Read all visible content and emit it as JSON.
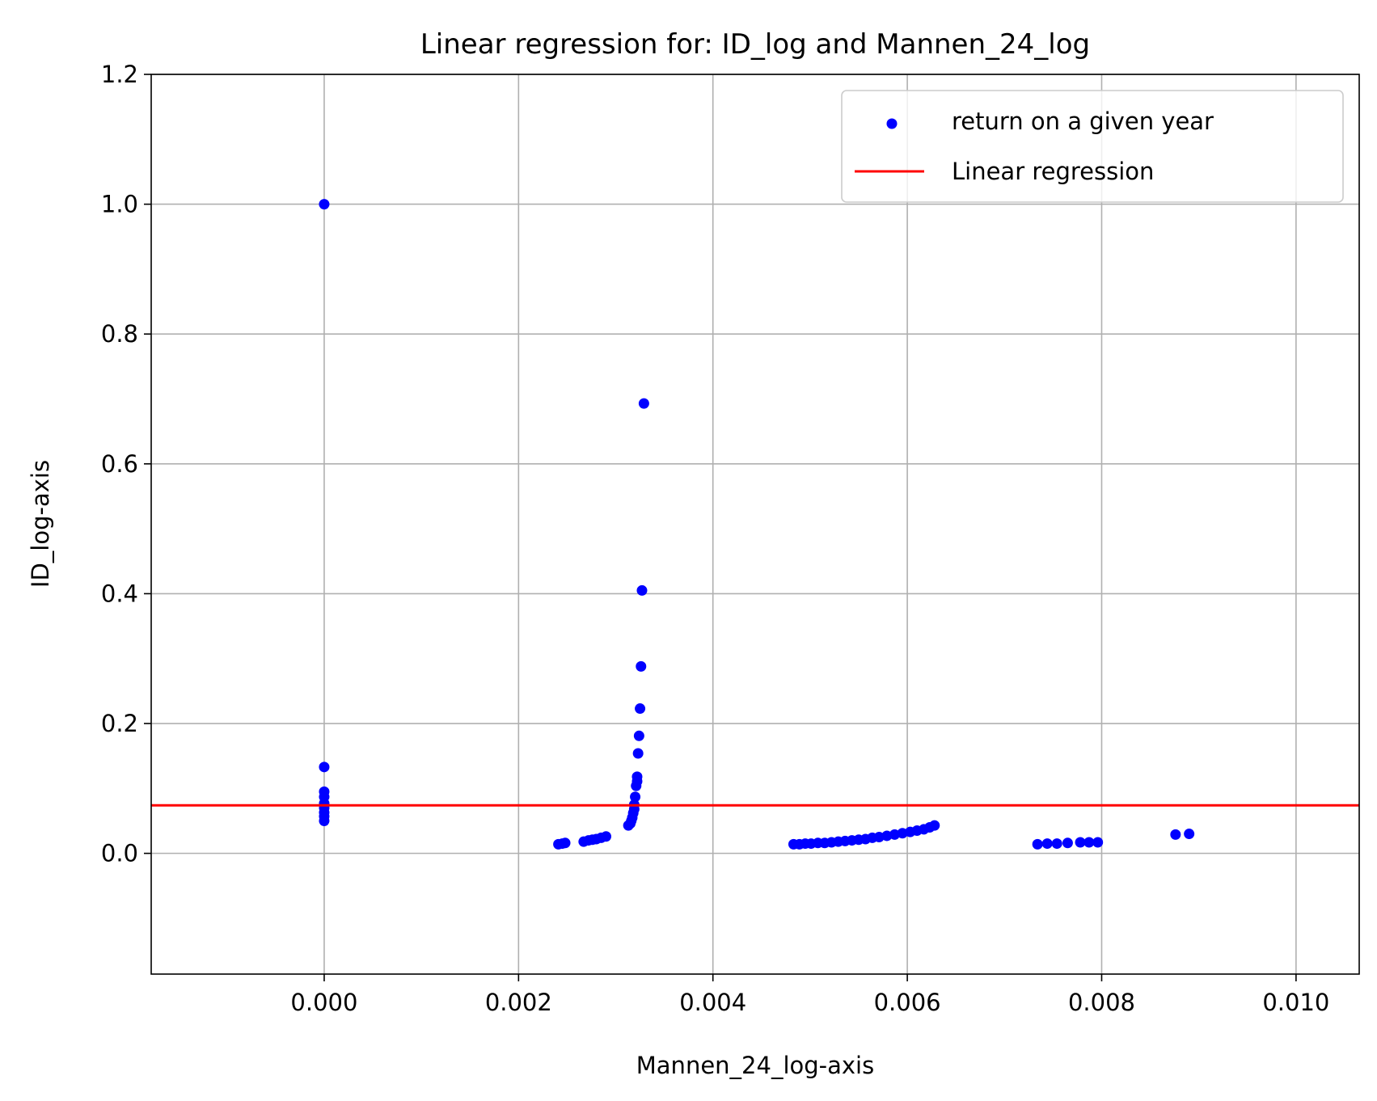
{
  "chart_data": {
    "type": "scatter",
    "title": "Linear regression for: ID_log and Mannen_24_log",
    "xlabel": "Mannen_24_log-axis",
    "ylabel": "ID_log-axis",
    "xlim": [
      -0.00178,
      0.01065
    ],
    "ylim": [
      -0.186,
      1.2
    ],
    "xticks": [
      0.0,
      0.002,
      0.004,
      0.006,
      0.008,
      0.01
    ],
    "xtick_labels": [
      "0.000",
      "0.002",
      "0.004",
      "0.006",
      "0.008",
      "0.010"
    ],
    "yticks": [
      0.0,
      0.2,
      0.4,
      0.6,
      0.8,
      1.0,
      1.2
    ],
    "ytick_labels": [
      "0.0",
      "0.2",
      "0.4",
      "0.6",
      "0.8",
      "1.0",
      "1.2"
    ],
    "grid": true,
    "legend_position": "top-right",
    "series": [
      {
        "name": "return on a given year",
        "kind": "scatter",
        "color": "#0000ff",
        "points": [
          [
            0.0,
            1.0
          ],
          [
            0.0,
            0.133
          ],
          [
            0.0,
            0.095
          ],
          [
            0.0,
            0.087
          ],
          [
            0.0,
            0.077
          ],
          [
            0.0,
            0.07
          ],
          [
            0.0,
            0.063
          ],
          [
            0.0,
            0.057
          ],
          [
            0.0,
            0.05
          ],
          [
            0.00241,
            0.014
          ],
          [
            0.00245,
            0.015
          ],
          [
            0.00248,
            0.016
          ],
          [
            0.00267,
            0.018
          ],
          [
            0.00272,
            0.02
          ],
          [
            0.00276,
            0.021
          ],
          [
            0.0028,
            0.022
          ],
          [
            0.00285,
            0.024
          ],
          [
            0.0029,
            0.026
          ],
          [
            0.00313,
            0.043
          ],
          [
            0.00315,
            0.046
          ],
          [
            0.00316,
            0.05
          ],
          [
            0.00317,
            0.055
          ],
          [
            0.00318,
            0.062
          ],
          [
            0.00319,
            0.068
          ],
          [
            0.00319,
            0.075
          ],
          [
            0.0032,
            0.087
          ],
          [
            0.00321,
            0.104
          ],
          [
            0.00322,
            0.111
          ],
          [
            0.00322,
            0.118
          ],
          [
            0.00323,
            0.154
          ],
          [
            0.00324,
            0.181
          ],
          [
            0.00325,
            0.223
          ],
          [
            0.00326,
            0.288
          ],
          [
            0.00327,
            0.405
          ],
          [
            0.00329,
            0.693
          ],
          [
            0.00483,
            0.014
          ],
          [
            0.00489,
            0.014
          ],
          [
            0.00495,
            0.015
          ],
          [
            0.00501,
            0.015
          ],
          [
            0.00508,
            0.016
          ],
          [
            0.00515,
            0.016
          ],
          [
            0.00522,
            0.017
          ],
          [
            0.00529,
            0.018
          ],
          [
            0.00536,
            0.019
          ],
          [
            0.00543,
            0.02
          ],
          [
            0.0055,
            0.021
          ],
          [
            0.00557,
            0.022
          ],
          [
            0.00564,
            0.024
          ],
          [
            0.00571,
            0.025
          ],
          [
            0.00579,
            0.027
          ],
          [
            0.00587,
            0.029
          ],
          [
            0.00595,
            0.031
          ],
          [
            0.00603,
            0.033
          ],
          [
            0.0061,
            0.035
          ],
          [
            0.00617,
            0.037
          ],
          [
            0.00623,
            0.04
          ],
          [
            0.00628,
            0.043
          ],
          [
            0.00734,
            0.014
          ],
          [
            0.00744,
            0.015
          ],
          [
            0.00754,
            0.015
          ],
          [
            0.00765,
            0.016
          ],
          [
            0.00778,
            0.017
          ],
          [
            0.00787,
            0.017
          ],
          [
            0.00796,
            0.017
          ],
          [
            0.00876,
            0.029
          ],
          [
            0.0089,
            0.03
          ]
        ]
      },
      {
        "name": "Linear regression",
        "kind": "line",
        "color": "#ff0000",
        "intercept": 0.074,
        "slope": 0.0
      }
    ]
  }
}
